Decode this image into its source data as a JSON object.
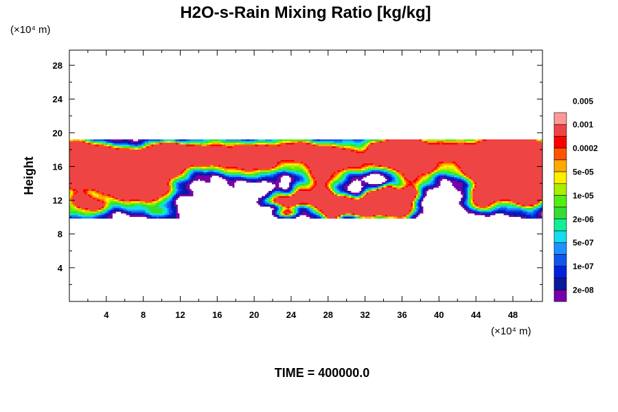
{
  "chart_data": {
    "type": "heatmap",
    "title": "H2O-s-Rain Mixing Ratio [kg/kg]",
    "ylabel": "Height",
    "x_unit": "(×10⁴ m)",
    "y_unit": "(×10⁴ m)",
    "footer": "TIME = 400000.0",
    "xlim": [
      0,
      51.2
    ],
    "ylim": [
      0,
      29.8
    ],
    "x_ticks": [
      4,
      8,
      12,
      16,
      20,
      24,
      28,
      32,
      36,
      40,
      44,
      48
    ],
    "y_ticks": [
      4,
      8,
      12,
      16,
      20,
      24,
      28
    ],
    "x_tick_labels": [
      "4",
      "8",
      "12",
      "16",
      "20",
      "24",
      "28",
      "32",
      "36",
      "40",
      "44",
      "48"
    ],
    "y_tick_labels": [
      "4",
      "8",
      "12",
      "16",
      "20",
      "24",
      "28"
    ],
    "colorbar": {
      "colors": [
        "#7700aa",
        "#0a1a9c",
        "#0022dd",
        "#1155ee",
        "#1e90ff",
        "#11ddee",
        "#11ee99",
        "#33dd33",
        "#55ee11",
        "#aaee00",
        "#ffee00",
        "#ffaa00",
        "#ff5500",
        "#ff0000",
        "#ee4444",
        "#ff9999"
      ],
      "labels": [
        "2e-08",
        "1e-07",
        "5e-07",
        "2e-06",
        "1e-05",
        "5e-05",
        "0.0002",
        "0.001",
        "0.005"
      ]
    }
  }
}
